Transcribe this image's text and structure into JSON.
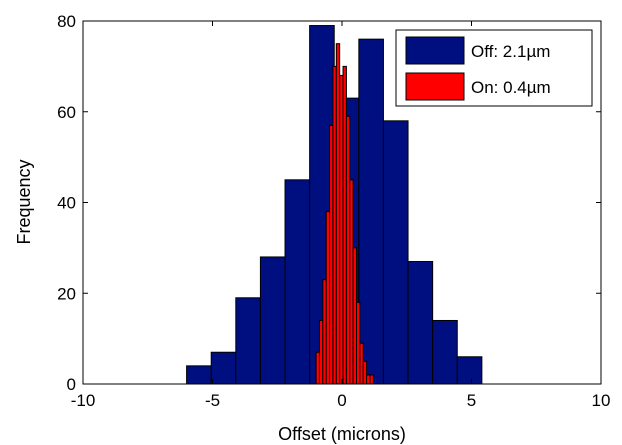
{
  "chart_data": {
    "type": "bar",
    "subtype": "histogram",
    "title": "",
    "xlabel": "Offset (microns)",
    "ylabel": "Frequency",
    "xlim": [
      -10,
      10
    ],
    "ylim": [
      0,
      80
    ],
    "xticks": [
      "-10",
      "-5",
      "0",
      "5",
      "10"
    ],
    "yticks": [
      "0",
      "20",
      "40",
      "60",
      "80"
    ],
    "legend_position": "top-right",
    "grid": false,
    "series": [
      {
        "name": "Off: 2.1µm",
        "color": "#000f7f",
        "bins": [
          {
            "x0": -6.0,
            "x1": -5.05,
            "value": 4
          },
          {
            "x0": -5.05,
            "x1": -4.1,
            "value": 7
          },
          {
            "x0": -4.1,
            "x1": -3.15,
            "value": 19
          },
          {
            "x0": -3.15,
            "x1": -2.2,
            "value": 28
          },
          {
            "x0": -2.2,
            "x1": -1.25,
            "value": 45
          },
          {
            "x0": -1.25,
            "x1": -0.3,
            "value": 79
          },
          {
            "x0": -0.3,
            "x1": 0.65,
            "value": 63
          },
          {
            "x0": 0.65,
            "x1": 1.6,
            "value": 76
          },
          {
            "x0": 1.6,
            "x1": 2.55,
            "value": 58
          },
          {
            "x0": 2.55,
            "x1": 3.5,
            "value": 27
          },
          {
            "x0": 3.5,
            "x1": 4.45,
            "value": 14
          },
          {
            "x0": 4.45,
            "x1": 5.4,
            "value": 6
          }
        ]
      },
      {
        "name": "On: 0.4µm",
        "color": "#ff0000",
        "bins": [
          {
            "x0": -1.0,
            "x1": -0.87,
            "value": 7
          },
          {
            "x0": -0.87,
            "x1": -0.74,
            "value": 14
          },
          {
            "x0": -0.74,
            "x1": -0.61,
            "value": 23
          },
          {
            "x0": -0.61,
            "x1": -0.48,
            "value": 38
          },
          {
            "x0": -0.48,
            "x1": -0.35,
            "value": 57
          },
          {
            "x0": -0.35,
            "x1": -0.22,
            "value": 70
          },
          {
            "x0": -0.22,
            "x1": -0.09,
            "value": 75
          },
          {
            "x0": -0.09,
            "x1": 0.04,
            "value": 68
          },
          {
            "x0": 0.04,
            "x1": 0.17,
            "value": 70
          },
          {
            "x0": 0.17,
            "x1": 0.3,
            "value": 59
          },
          {
            "x0": 0.3,
            "x1": 0.43,
            "value": 45
          },
          {
            "x0": 0.43,
            "x1": 0.56,
            "value": 30
          },
          {
            "x0": 0.56,
            "x1": 0.69,
            "value": 18
          },
          {
            "x0": 0.69,
            "x1": 0.82,
            "value": 9
          },
          {
            "x0": 0.82,
            "x1": 0.95,
            "value": 5
          },
          {
            "x0": 0.95,
            "x1": 1.08,
            "value": 2
          },
          {
            "x0": 1.08,
            "x1": 1.21,
            "value": 2
          }
        ]
      }
    ]
  }
}
